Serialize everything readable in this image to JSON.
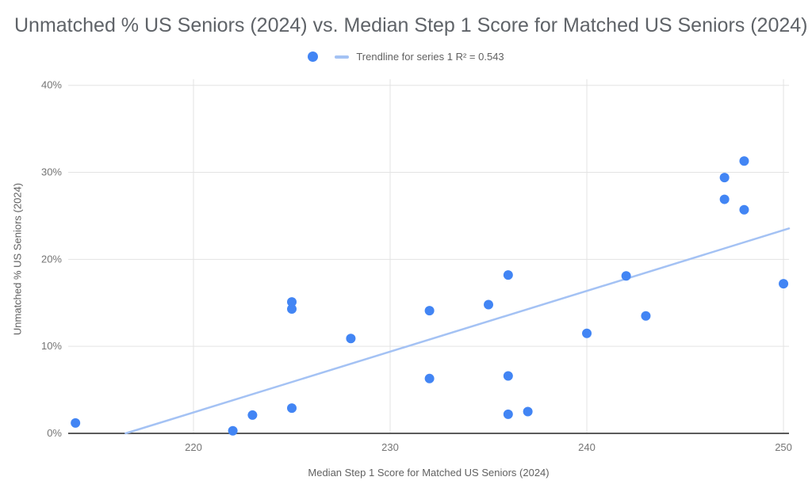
{
  "title": "Unmatched % US Seniors (2024) vs. Median Step 1 Score for Matched US Seniors (2024)",
  "legend": {
    "series_marker": "blue-dot-icon",
    "trendline_marker": "light-blue-dash-icon",
    "trendline_label": "Trendline for series 1 R² = 0.543"
  },
  "colors": {
    "point": "#4285f4",
    "trendline": "#a4c2f4",
    "gridline": "#e3e3e3",
    "axis_line": "#5b5b5b",
    "title_text": "#5f6368",
    "tick_text": "#757575",
    "axis_title_text": "#616161",
    "background": "#ffffff"
  },
  "chart_data": {
    "type": "scatter",
    "title": "Unmatched % US Seniors (2024) vs. Median Step 1 Score for Matched US Seniors (2024)",
    "xlabel": "Median Step 1 Score for Matched US Seniors (2024)",
    "ylabel": "Unmatched % US Seniors (2024)",
    "xlim": [
      213.63,
      250.28
    ],
    "ylim": [
      0,
      40.7
    ],
    "x_ticks": [
      220,
      230,
      240,
      250
    ],
    "y_ticks": [
      0,
      10,
      20,
      30,
      40
    ],
    "y_tick_suffix": "%",
    "grid": true,
    "legend_position": "top-center",
    "points": [
      [
        214,
        1.2
      ],
      [
        222,
        0.3
      ],
      [
        223,
        2.1
      ],
      [
        225,
        2.9
      ],
      [
        225,
        14.3
      ],
      [
        225,
        15.1
      ],
      [
        228,
        10.9
      ],
      [
        232,
        6.3
      ],
      [
        232,
        14.1
      ],
      [
        235,
        14.8
      ],
      [
        236,
        2.2
      ],
      [
        236,
        6.6
      ],
      [
        236,
        18.2
      ],
      [
        237,
        2.5
      ],
      [
        240,
        11.5
      ],
      [
        242,
        18.1
      ],
      [
        243,
        13.5
      ],
      [
        247,
        26.9
      ],
      [
        247,
        29.4
      ],
      [
        248,
        25.7
      ],
      [
        248,
        31.3
      ],
      [
        250,
        17.2
      ]
    ],
    "trendline": {
      "label": "Trendline for series 1 R² = 0.543",
      "r_squared": 0.543,
      "x_start": 216.55,
      "y_start": 0,
      "x_end": 250.28,
      "y_end": 23.55
    }
  }
}
